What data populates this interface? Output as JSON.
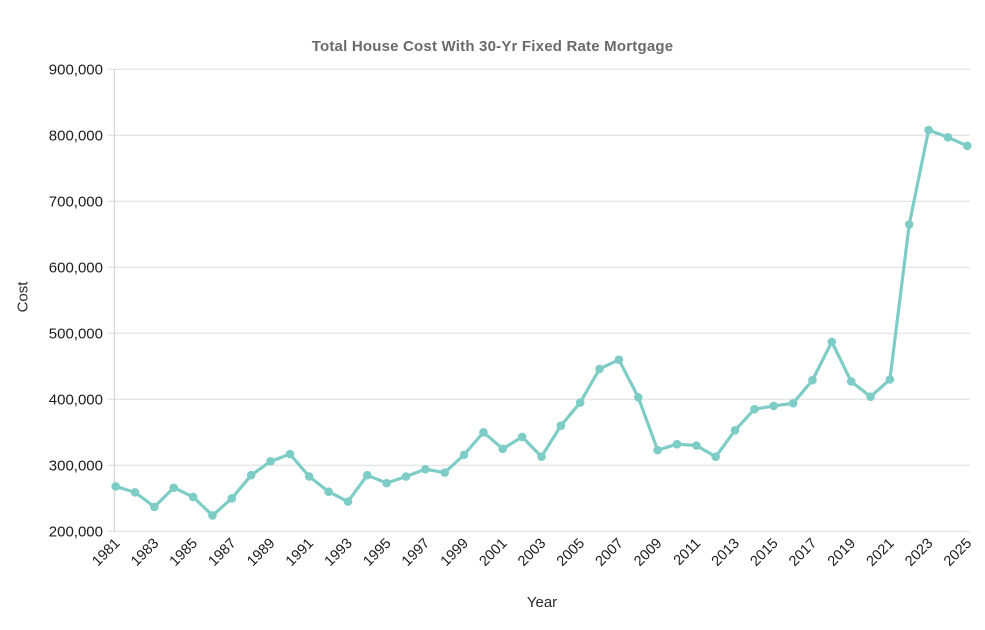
{
  "chart_data": {
    "type": "line",
    "title": "Total House Cost With 30-Yr Fixed Rate Mortgage",
    "xlabel": "Year",
    "ylabel": "Cost",
    "x": [
      1981,
      1982,
      1983,
      1984,
      1985,
      1986,
      1987,
      1988,
      1989,
      1990,
      1991,
      1992,
      1993,
      1994,
      1995,
      1996,
      1997,
      1998,
      1999,
      2000,
      2001,
      2002,
      2003,
      2004,
      2005,
      2006,
      2007,
      2008,
      2009,
      2010,
      2011,
      2012,
      2013,
      2014,
      2015,
      2016,
      2017,
      2018,
      2019,
      2020,
      2021,
      2022,
      2023,
      2024,
      2025
    ],
    "values": [
      268000,
      259000,
      237000,
      266000,
      252000,
      224000,
      250000,
      285000,
      306000,
      317000,
      283000,
      260000,
      245000,
      285000,
      273000,
      283000,
      294000,
      289000,
      316000,
      350000,
      325000,
      343000,
      313000,
      360000,
      395000,
      446000,
      460000,
      403000,
      323000,
      332000,
      330000,
      313000,
      353000,
      385000,
      390000,
      394000,
      429000,
      487000,
      427000,
      404000,
      430000,
      665000,
      808000,
      797000,
      784000
    ],
    "ylim": [
      200000,
      900000
    ],
    "yticks": [
      200000,
      300000,
      400000,
      500000,
      600000,
      700000,
      800000,
      900000
    ],
    "xticks": [
      1981,
      1983,
      1985,
      1987,
      1989,
      1991,
      1993,
      1995,
      1997,
      1999,
      2001,
      2003,
      2005,
      2007,
      2009,
      2011,
      2013,
      2015,
      2017,
      2019,
      2021,
      2023,
      2025
    ],
    "grid": "horizontal",
    "legend": "none",
    "marker": "circle",
    "colors": {
      "line": "#7dcdc6",
      "grid": "#dedede",
      "axis_spine": "#cfcfcf",
      "tick_label": "#1c1c1c",
      "title": "#6a6a6a",
      "axis_title": "#2b2b2b",
      "background": "#ffffff"
    }
  }
}
